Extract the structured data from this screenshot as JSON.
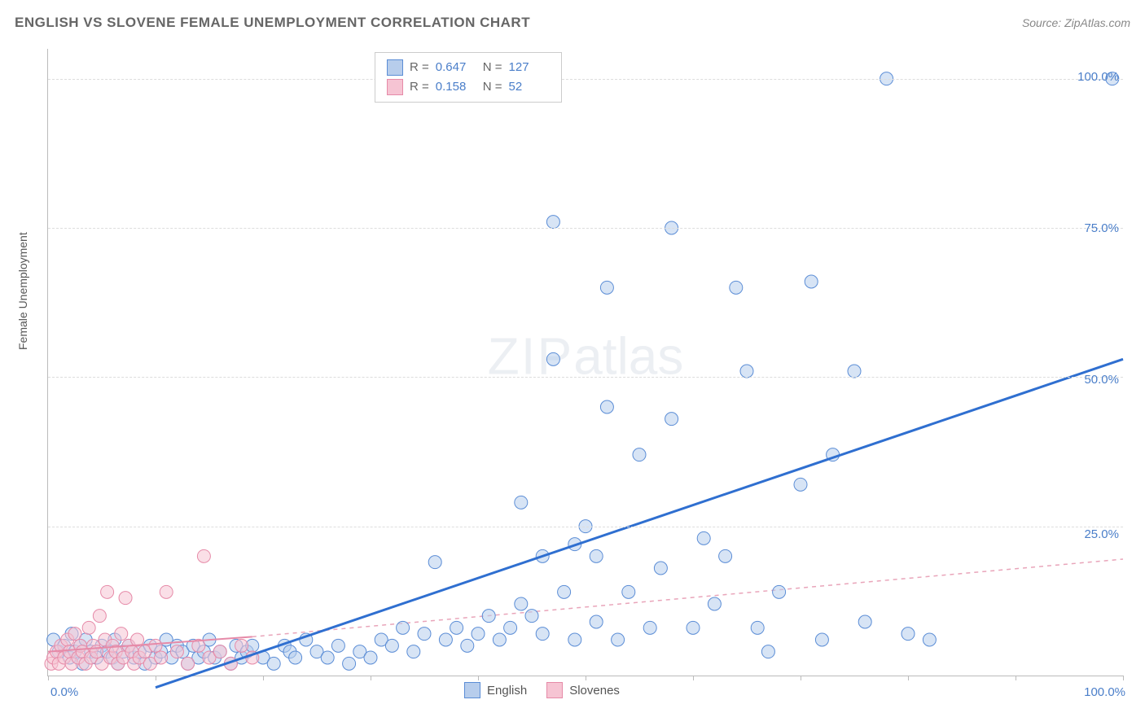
{
  "header": {
    "title": "ENGLISH VS SLOVENE FEMALE UNEMPLOYMENT CORRELATION CHART",
    "source": "Source: ZipAtlas.com"
  },
  "axes": {
    "ylabel": "Female Unemployment",
    "xlim": [
      0,
      100
    ],
    "ylim": [
      0,
      105
    ],
    "grid_y_values": [
      25,
      50,
      75,
      100
    ],
    "grid_y_labels": [
      "25.0%",
      "50.0%",
      "75.0%",
      "100.0%"
    ],
    "x_tick_labels": {
      "min": "0.0%",
      "max": "100.0%"
    },
    "x_ticks": [
      0,
      10,
      20,
      30,
      40,
      50,
      60,
      70,
      80,
      90,
      100
    ],
    "grid_color": "#dddddd",
    "axis_color": "#bbbbbb",
    "label_color": "#4a7ec9",
    "label_fontsize": 15
  },
  "watermark": {
    "text_bold": "ZIP",
    "text_light": "atlas"
  },
  "stat_legend": {
    "rows": [
      {
        "swatch_fill": "#b7cdec",
        "swatch_border": "#5b8dd6",
        "r_label": "R =",
        "r_value": "0.647",
        "n_label": "N =",
        "n_value": "127"
      },
      {
        "swatch_fill": "#f6c4d3",
        "swatch_border": "#e68aa8",
        "r_label": "R =",
        "r_value": "0.158",
        "n_label": "N =",
        "n_value": "52"
      }
    ]
  },
  "bottom_legend": {
    "items": [
      {
        "swatch_fill": "#b7cdec",
        "swatch_border": "#5b8dd6",
        "label": "English"
      },
      {
        "swatch_fill": "#f6c4d3",
        "swatch_border": "#e68aa8",
        "label": "Slovenes"
      }
    ]
  },
  "chart": {
    "type": "scatter",
    "background_color": "#ffffff",
    "marker_radius": 8,
    "marker_opacity": 0.55,
    "series": [
      {
        "name": "English",
        "fill": "#b7cdec",
        "stroke": "#5b8dd6",
        "points": [
          [
            0.5,
            6
          ],
          [
            1,
            4
          ],
          [
            1.5,
            5
          ],
          [
            2,
            3
          ],
          [
            2.2,
            7
          ],
          [
            2.5,
            4
          ],
          [
            3,
            5
          ],
          [
            3.2,
            2
          ],
          [
            3.5,
            6
          ],
          [
            4,
            4
          ],
          [
            4.5,
            3
          ],
          [
            5,
            5
          ],
          [
            5.5,
            4
          ],
          [
            6,
            3
          ],
          [
            6.2,
            6
          ],
          [
            6.5,
            2
          ],
          [
            7,
            4
          ],
          [
            7.5,
            5
          ],
          [
            8,
            3
          ],
          [
            8.5,
            4
          ],
          [
            9,
            2
          ],
          [
            9.5,
            5
          ],
          [
            10,
            3
          ],
          [
            10.5,
            4
          ],
          [
            11,
            6
          ],
          [
            11.5,
            3
          ],
          [
            12,
            5
          ],
          [
            12.5,
            4
          ],
          [
            13,
            2
          ],
          [
            13.5,
            5
          ],
          [
            14,
            3
          ],
          [
            14.5,
            4
          ],
          [
            15,
            6
          ],
          [
            15.5,
            3
          ],
          [
            16,
            4
          ],
          [
            17,
            2
          ],
          [
            17.5,
            5
          ],
          [
            18,
            3
          ],
          [
            18.5,
            4
          ],
          [
            19,
            5
          ],
          [
            20,
            3
          ],
          [
            21,
            2
          ],
          [
            22,
            5
          ],
          [
            22.5,
            4
          ],
          [
            23,
            3
          ],
          [
            24,
            6
          ],
          [
            25,
            4
          ],
          [
            26,
            3
          ],
          [
            27,
            5
          ],
          [
            28,
            2
          ],
          [
            29,
            4
          ],
          [
            30,
            3
          ],
          [
            31,
            6
          ],
          [
            32,
            5
          ],
          [
            33,
            8
          ],
          [
            34,
            4
          ],
          [
            35,
            7
          ],
          [
            36,
            19
          ],
          [
            37,
            6
          ],
          [
            38,
            8
          ],
          [
            39,
            5
          ],
          [
            40,
            7
          ],
          [
            41,
            10
          ],
          [
            42,
            6
          ],
          [
            43,
            8
          ],
          [
            44,
            12
          ],
          [
            44,
            29
          ],
          [
            45,
            10
          ],
          [
            46,
            7
          ],
          [
            46,
            20
          ],
          [
            47,
            53
          ],
          [
            47,
            76
          ],
          [
            48,
            14
          ],
          [
            49,
            6
          ],
          [
            49,
            22
          ],
          [
            50,
            25
          ],
          [
            51,
            9
          ],
          [
            51,
            20
          ],
          [
            52,
            45
          ],
          [
            52,
            65
          ],
          [
            53,
            6
          ],
          [
            54,
            14
          ],
          [
            55,
            37
          ],
          [
            56,
            8
          ],
          [
            57,
            18
          ],
          [
            58,
            43
          ],
          [
            58,
            75
          ],
          [
            60,
            8
          ],
          [
            61,
            23
          ],
          [
            62,
            12
          ],
          [
            63,
            20
          ],
          [
            64,
            65
          ],
          [
            65,
            51
          ],
          [
            66,
            8
          ],
          [
            67,
            4
          ],
          [
            68,
            14
          ],
          [
            70,
            32
          ],
          [
            71,
            66
          ],
          [
            72,
            6
          ],
          [
            73,
            37
          ],
          [
            75,
            51
          ],
          [
            76,
            9
          ],
          [
            78,
            100
          ],
          [
            80,
            7
          ],
          [
            82,
            6
          ],
          [
            99,
            100
          ]
        ],
        "trend": {
          "x1": 10,
          "y1": -2,
          "x2": 100,
          "y2": 53,
          "stroke": "#2f6fd0",
          "width": 3,
          "dash": null
        }
      },
      {
        "name": "Slovenes",
        "fill": "#f6c4d3",
        "stroke": "#e68aa8",
        "points": [
          [
            0.3,
            2
          ],
          [
            0.5,
            3
          ],
          [
            0.8,
            4
          ],
          [
            1,
            2
          ],
          [
            1.2,
            5
          ],
          [
            1.5,
            3
          ],
          [
            1.8,
            6
          ],
          [
            2,
            4
          ],
          [
            2.2,
            2
          ],
          [
            2.5,
            7
          ],
          [
            2.8,
            3
          ],
          [
            3,
            5
          ],
          [
            3.2,
            4
          ],
          [
            3.5,
            2
          ],
          [
            3.8,
            8
          ],
          [
            4,
            3
          ],
          [
            4.2,
            5
          ],
          [
            4.5,
            4
          ],
          [
            4.8,
            10
          ],
          [
            5,
            2
          ],
          [
            5.3,
            6
          ],
          [
            5.5,
            14
          ],
          [
            5.8,
            3
          ],
          [
            6,
            5
          ],
          [
            6.3,
            4
          ],
          [
            6.5,
            2
          ],
          [
            6.8,
            7
          ],
          [
            7,
            3
          ],
          [
            7.2,
            13
          ],
          [
            7.5,
            5
          ],
          [
            7.8,
            4
          ],
          [
            8,
            2
          ],
          [
            8.3,
            6
          ],
          [
            8.5,
            3
          ],
          [
            9,
            4
          ],
          [
            9.5,
            2
          ],
          [
            10,
            5
          ],
          [
            10.5,
            3
          ],
          [
            11,
            14
          ],
          [
            12,
            4
          ],
          [
            13,
            2
          ],
          [
            14,
            5
          ],
          [
            14.5,
            20
          ],
          [
            15,
            3
          ],
          [
            16,
            4
          ],
          [
            17,
            2
          ],
          [
            18,
            5
          ],
          [
            19,
            3
          ]
        ],
        "trend_solid": {
          "x1": 0,
          "y1": 4,
          "x2": 19,
          "y2": 6.5,
          "stroke": "#e68aa8",
          "width": 2,
          "dash": null
        },
        "trend_dashed": {
          "x1": 19,
          "y1": 6.5,
          "x2": 100,
          "y2": 19.5,
          "stroke": "#e9a5ba",
          "width": 1.5,
          "dash": "5,5"
        }
      }
    ]
  }
}
